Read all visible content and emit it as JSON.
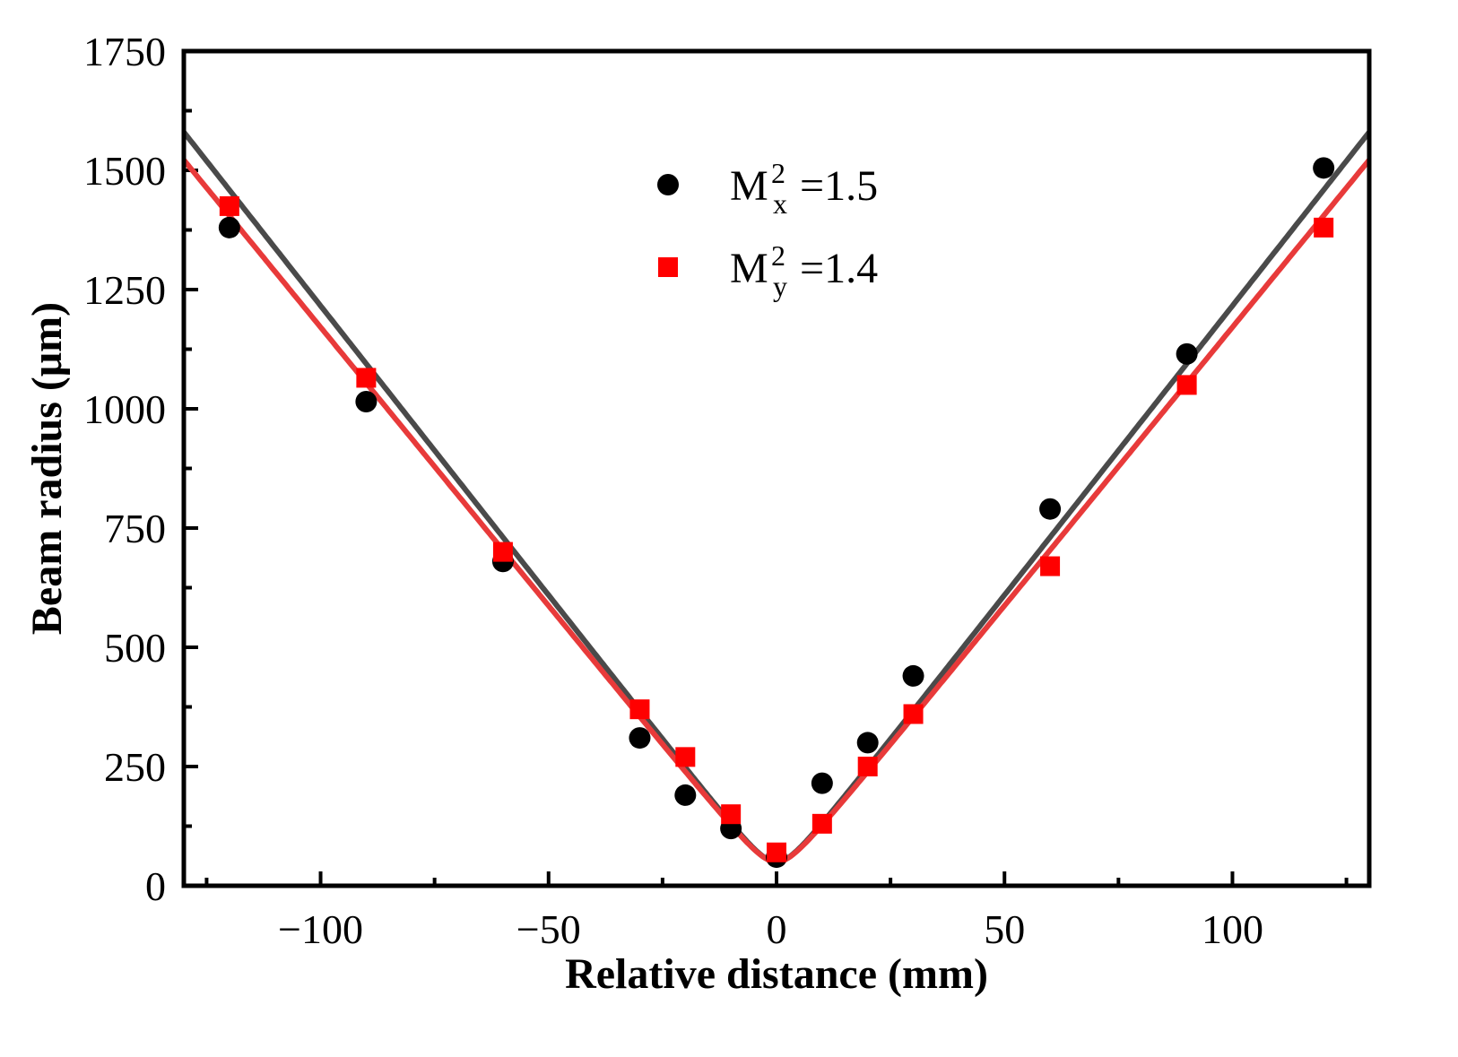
{
  "chart_data": {
    "type": "scatter",
    "title": "",
    "xlabel": "Relative distance (mm)",
    "ylabel": "Beam radius (μm)",
    "xlim": [
      -130,
      130
    ],
    "ylim": [
      0,
      1750
    ],
    "xticks": [
      -100,
      -50,
      0,
      50,
      100
    ],
    "xtick_labels": [
      "−100",
      "−50",
      "0",
      "50",
      "100"
    ],
    "yticks": [
      0,
      250,
      500,
      750,
      1000,
      1250,
      1500,
      1750
    ],
    "ytick_labels": [
      "0",
      "250",
      "500",
      "750",
      "1000",
      "1250",
      "1500",
      "1750"
    ],
    "legend_position": "top-center",
    "series": [
      {
        "name": "M_x^2 =1.5",
        "legend": {
          "base": "M",
          "sup": "2",
          "sub": "x",
          "value": "=1.5"
        },
        "marker": "circle",
        "color": "#000000",
        "fit_color": "#4a4a4a",
        "fit": {
          "w0": 50,
          "slope": 12.15
        },
        "x": [
          -120,
          -90,
          -60,
          -30,
          -20,
          -10,
          0,
          10,
          20,
          30,
          60,
          90,
          120
        ],
        "y": [
          1380,
          1015,
          680,
          310,
          190,
          120,
          60,
          215,
          300,
          440,
          790,
          1115,
          1505
        ]
      },
      {
        "name": "M_y^2 =1.4",
        "legend": {
          "base": "M",
          "sup": "2",
          "sub": "y",
          "value": "=1.4"
        },
        "marker": "square",
        "color": "#ff0000",
        "fit_color": "#e83a3a",
        "fit": {
          "w0": 50,
          "slope": 11.7
        },
        "x": [
          -120,
          -90,
          -60,
          -30,
          -20,
          -10,
          0,
          10,
          20,
          30,
          60,
          90,
          120
        ],
        "y": [
          1425,
          1065,
          700,
          370,
          270,
          150,
          70,
          130,
          250,
          360,
          670,
          1050,
          1380
        ]
      }
    ]
  }
}
